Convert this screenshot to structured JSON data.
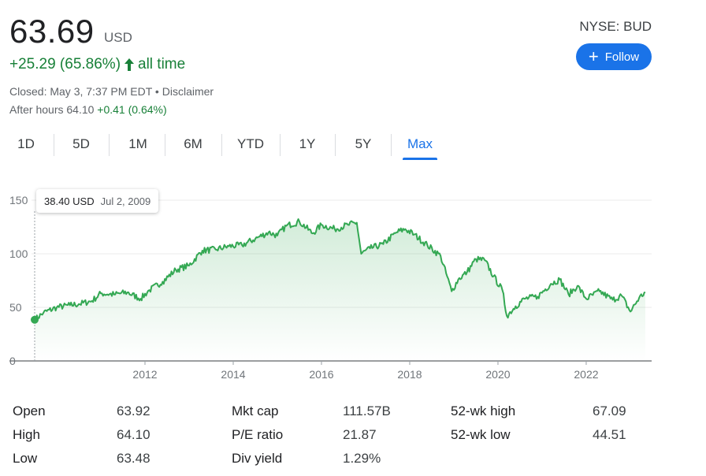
{
  "quote": {
    "price": "63.69",
    "currency": "USD",
    "change": "+25.29 (65.86%)",
    "change_period": "all time",
    "closed_text": "Closed: May 3, 7:37 PM EDT",
    "bullet": " • ",
    "disclaimer": "Disclaimer",
    "after_hours_label": "After hours 64.10",
    "after_hours_change": "+0.41 (0.64%)"
  },
  "ticker": "NYSE: BUD",
  "follow_label": "Follow",
  "ranges": [
    {
      "label": "1D"
    },
    {
      "label": "5D"
    },
    {
      "label": "1M"
    },
    {
      "label": "6M"
    },
    {
      "label": "YTD"
    },
    {
      "label": "1Y"
    },
    {
      "label": "5Y"
    },
    {
      "label": "Max",
      "active": true
    }
  ],
  "tooltip": {
    "value": "38.40 USD",
    "date": "Jul 2, 2009"
  },
  "colors": {
    "line": "#34a853",
    "positive": "#188038",
    "accent": "#1a73e8"
  },
  "chart_data": {
    "type": "line",
    "title": "",
    "xlabel": "",
    "ylabel": "",
    "ylim": [
      0,
      150
    ],
    "xlim": [
      2009.5,
      2023.34
    ],
    "y_ticks": [
      0,
      50,
      100,
      150
    ],
    "x_ticks": [
      "2012",
      "2014",
      "2016",
      "2018",
      "2020",
      "2022"
    ],
    "x_tick_values": [
      2012,
      2014,
      2016,
      2018,
      2020,
      2022
    ],
    "grid": true,
    "series": [
      {
        "x": [
          2009.5,
          2009.7,
          2010.0,
          2010.3,
          2010.5,
          2010.8,
          2011.0,
          2011.3,
          2011.6,
          2011.9,
          2012.1,
          2012.4,
          2012.7,
          2013.0,
          2013.3,
          2013.6,
          2013.9,
          2014.2,
          2014.5,
          2014.8,
          2015.0,
          2015.2,
          2015.5,
          2015.8,
          2016.0,
          2016.3,
          2016.6,
          2016.8,
          2016.9,
          2017.1,
          2017.4,
          2017.7,
          2017.9,
          2018.1,
          2018.4,
          2018.7,
          2018.95,
          2019.1,
          2019.3,
          2019.5,
          2019.7,
          2019.9,
          2020.1,
          2020.2,
          2020.4,
          2020.6,
          2020.9,
          2021.2,
          2021.4,
          2021.6,
          2021.8,
          2022.0,
          2022.3,
          2022.6,
          2022.8,
          2023.0,
          2023.2,
          2023.34
        ],
        "y": [
          38.4,
          45,
          50,
          52,
          53,
          56,
          63,
          62,
          64,
          58,
          66,
          74,
          85,
          89,
          103,
          104,
          107,
          108,
          114,
          120,
          117,
          126,
          130,
          119,
          127,
          123,
          127,
          129,
          100,
          105,
          109,
          120,
          123,
          118,
          108,
          98,
          65,
          76,
          83,
          95,
          94,
          79,
          66,
          42,
          51,
          58,
          60,
          72,
          76,
          62,
          70,
          58,
          65,
          57,
          61,
          46,
          59,
          64
        ]
      }
    ]
  },
  "stats": {
    "col1": [
      {
        "label": "Open",
        "value": "63.92"
      },
      {
        "label": "High",
        "value": "64.10"
      },
      {
        "label": "Low",
        "value": "63.48"
      }
    ],
    "col2": [
      {
        "label": "Mkt cap",
        "value": "111.57B"
      },
      {
        "label": "P/E ratio",
        "value": "21.87"
      },
      {
        "label": "Div yield",
        "value": "1.29%"
      }
    ],
    "col3": [
      {
        "label": "52-wk high",
        "value": "67.09"
      },
      {
        "label": "52-wk low",
        "value": "44.51"
      }
    ]
  }
}
